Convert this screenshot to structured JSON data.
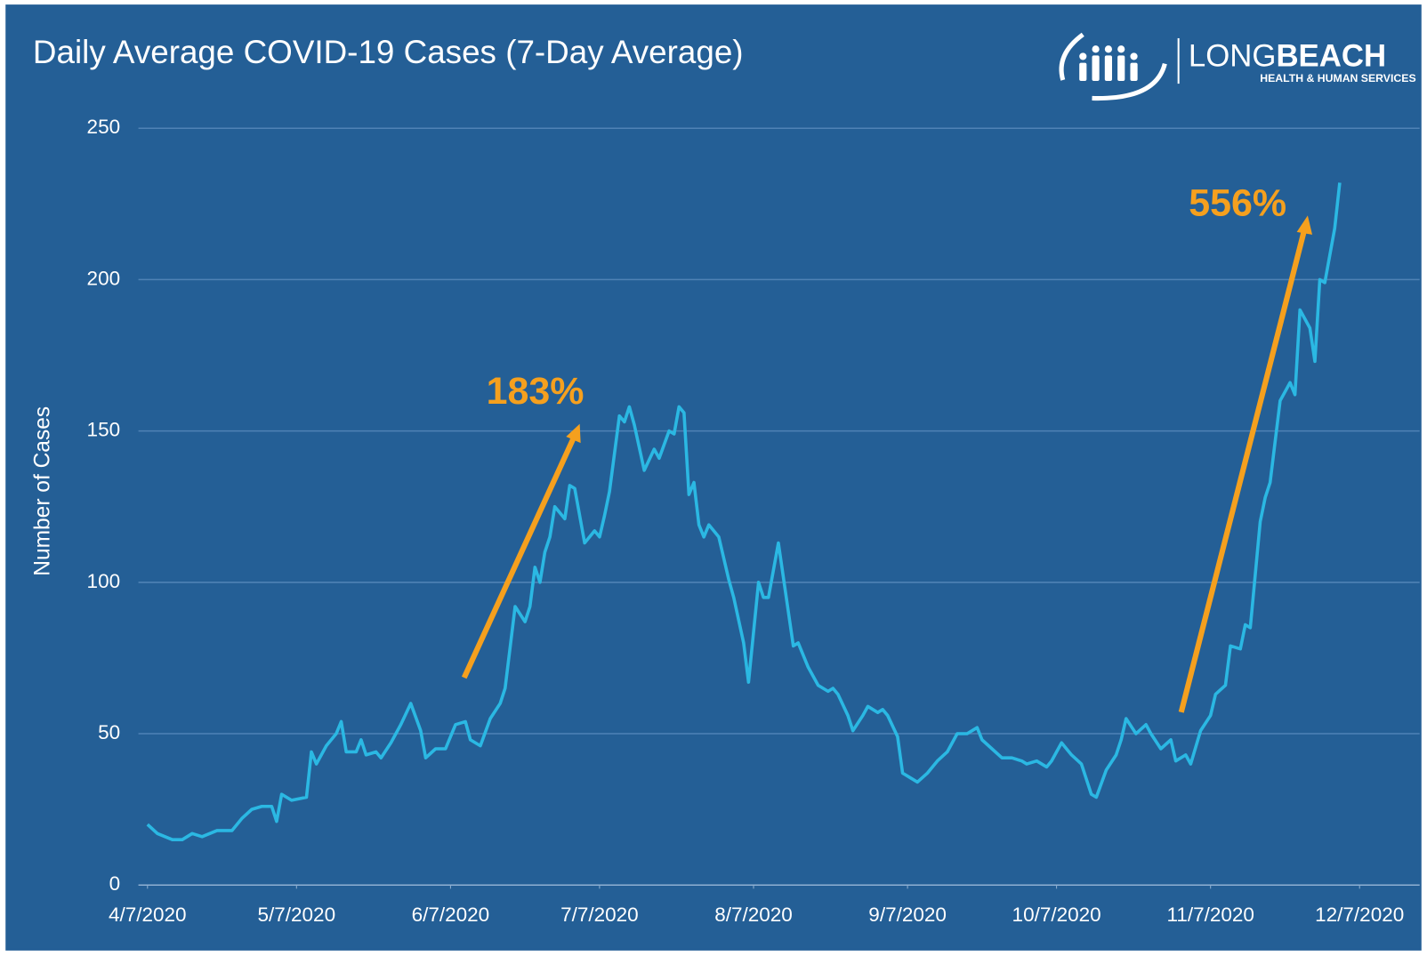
{
  "chart_data": {
    "type": "line",
    "title": "Daily Average COVID-19 Cases (7-Day Average)",
    "y_label": "Number of Cases",
    "logo": {
      "name_light": "LONG",
      "name_bold": "BEACH",
      "tagline": "HEALTH & HUMAN SERVICES"
    },
    "annotations": [
      {
        "text": "183%",
        "color": "#f5a01e"
      },
      {
        "text": "556%",
        "color": "#f5a01e"
      }
    ],
    "xlim": [
      "4/7/2020",
      "12/7/2020"
    ],
    "xticks": [
      "4/7/2020",
      "5/7/2020",
      "6/7/2020",
      "7/7/2020",
      "8/7/2020",
      "9/7/2020",
      "10/7/2020",
      "11/7/2020",
      "12/7/2020"
    ],
    "ylim": [
      0,
      250
    ],
    "yticks": [
      0,
      50,
      100,
      150,
      200,
      250
    ],
    "grid": true,
    "x": [
      "4/7/2020",
      "4/9/2020",
      "4/12/2020",
      "4/14/2020",
      "4/16/2020",
      "4/18/2020",
      "4/21/2020",
      "4/24/2020",
      "4/26/2020",
      "4/28/2020",
      "4/30/2020",
      "5/2/2020",
      "5/3/2020",
      "5/4/2020",
      "5/6/2020",
      "5/9/2020",
      "5/10/2020",
      "5/11/2020",
      "5/13/2020",
      "5/15/2020",
      "5/16/2020",
      "5/17/2020",
      "5/19/2020",
      "5/20/2020",
      "5/21/2020",
      "5/23/2020",
      "5/24/2020",
      "5/26/2020",
      "5/28/2020",
      "5/30/2020",
      "6/1/2020",
      "6/2/2020",
      "6/4/2020",
      "6/6/2020",
      "6/8/2020",
      "6/10/2020",
      "6/11/2020",
      "6/13/2020",
      "6/15/2020",
      "6/17/2020",
      "6/18/2020",
      "6/20/2020",
      "6/22/2020",
      "6/23/2020",
      "6/24/2020",
      "6/25/2020",
      "6/26/2020",
      "6/27/2020",
      "6/28/2020",
      "6/30/2020",
      "7/1/2020",
      "7/2/2020",
      "7/4/2020",
      "7/6/2020",
      "7/7/2020",
      "7/8/2020",
      "7/9/2020",
      "7/11/2020",
      "7/12/2020",
      "7/13/2020",
      "7/14/2020",
      "7/16/2020",
      "7/18/2020",
      "7/19/2020",
      "7/21/2020",
      "7/22/2020",
      "7/23/2020",
      "7/24/2020",
      "7/25/2020",
      "7/26/2020",
      "7/27/2020",
      "7/28/2020",
      "7/29/2020",
      "7/30/2020",
      "7/31/2020",
      "8/2/2020",
      "8/3/2020",
      "8/5/2020",
      "8/6/2020",
      "8/8/2020",
      "8/9/2020",
      "8/10/2020",
      "8/12/2020",
      "8/15/2020",
      "8/16/2020",
      "8/18/2020",
      "8/20/2020",
      "8/22/2020",
      "8/23/2020",
      "8/24/2020",
      "8/26/2020",
      "8/27/2020",
      "8/29/2020",
      "8/30/2020",
      "9/1/2020",
      "9/2/2020",
      "9/3/2020",
      "9/5/2020",
      "9/6/2020",
      "9/7/2020",
      "9/9/2020",
      "9/11/2020",
      "9/13/2020",
      "9/15/2020",
      "9/17/2020",
      "9/19/2020",
      "9/21/2020",
      "9/22/2020",
      "9/24/2020",
      "9/26/2020",
      "9/28/2020",
      "9/30/2020",
      "10/1/2020",
      "10/3/2020",
      "10/5/2020",
      "10/6/2020",
      "10/8/2020",
      "10/10/2020",
      "10/12/2020",
      "10/14/2020",
      "10/15/2020",
      "10/17/2020",
      "10/19/2020",
      "10/20/2020",
      "10/21/2020",
      "10/23/2020",
      "10/25/2020",
      "10/26/2020",
      "10/28/2020",
      "10/30/2020",
      "10/31/2020",
      "11/2/2020",
      "11/3/2020",
      "11/5/2020",
      "11/7/2020",
      "11/8/2020",
      "11/10/2020",
      "11/11/2020",
      "11/13/2020",
      "11/14/2020",
      "11/15/2020",
      "11/17/2020",
      "11/18/2020",
      "11/19/2020",
      "11/21/2020",
      "11/23/2020",
      "11/24/2020",
      "11/25/2020",
      "11/27/2020",
      "11/28/2020",
      "11/29/2020",
      "11/30/2020",
      "12/2/2020",
      "12/3/2020"
    ],
    "series": [
      {
        "name": "Daily Average",
        "color": "#2bb8e3",
        "values": [
          20,
          17,
          15,
          15,
          17,
          16,
          18,
          18,
          22,
          25,
          26,
          26,
          21,
          30,
          28,
          29,
          44,
          40,
          46,
          50,
          54,
          44,
          44,
          48,
          43,
          44,
          42,
          47,
          53,
          60,
          51,
          42,
          45,
          45,
          53,
          54,
          48,
          46,
          55,
          60,
          65,
          92,
          87,
          92,
          105,
          100,
          110,
          115,
          125,
          121,
          132,
          131,
          113,
          117,
          115,
          122,
          130,
          155,
          153,
          158,
          152,
          137,
          144,
          141,
          150,
          149,
          158,
          156,
          129,
          133,
          119,
          115,
          119,
          117,
          115,
          101,
          95,
          80,
          67,
          100,
          95,
          95,
          113,
          79,
          80,
          72,
          66,
          64,
          65,
          63,
          56,
          51,
          56,
          59,
          57,
          58,
          56,
          49,
          37,
          36,
          34,
          37,
          41,
          44,
          50,
          50,
          52,
          48,
          45,
          42,
          42,
          41,
          40,
          41,
          39,
          41,
          47,
          43,
          40,
          30,
          29,
          38,
          43,
          48,
          55,
          50,
          53,
          50,
          45,
          48,
          41,
          43,
          40,
          51,
          56,
          63,
          66,
          79,
          78,
          86,
          85,
          120,
          128,
          133,
          160,
          166,
          162,
          190,
          184,
          173,
          200,
          199,
          217,
          232
        ]
      }
    ]
  }
}
